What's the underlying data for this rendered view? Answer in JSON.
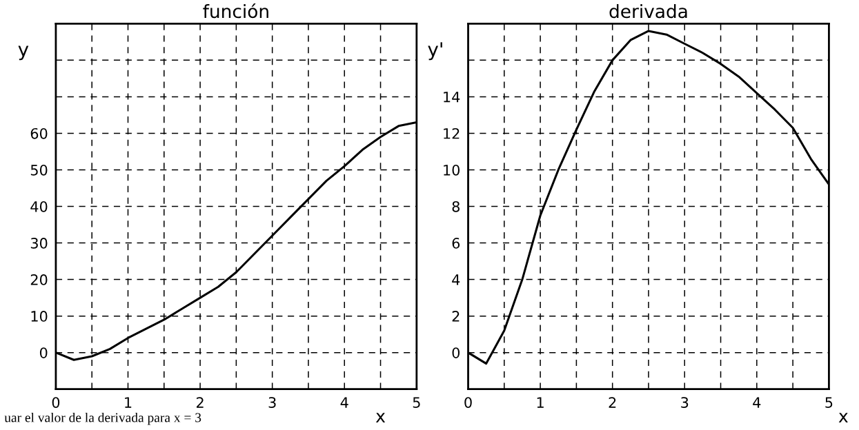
{
  "chart_data": [
    {
      "type": "line",
      "title": "función",
      "xlabel": "x",
      "ylabel": "y",
      "x": [
        0,
        0.25,
        0.5,
        0.75,
        1,
        1.25,
        1.5,
        1.75,
        2,
        2.25,
        2.5,
        2.75,
        3,
        3.25,
        3.5,
        3.75,
        4,
        4.25,
        4.5,
        4.75,
        5
      ],
      "series": [
        {
          "color": "#000000",
          "values": [
            0,
            -2,
            -1,
            1,
            4,
            6.5,
            9,
            12,
            15,
            18,
            22,
            27,
            32,
            37,
            42,
            47,
            51,
            55.5,
            59,
            62,
            63
          ]
        }
      ],
      "xlim": [
        0,
        5
      ],
      "xticks": [
        0,
        {
          "value": 0.5,
          "label": null
        },
        1,
        {
          "value": 1.5,
          "label": null
        },
        2,
        {
          "value": 2.5,
          "label": null
        },
        3,
        {
          "value": 3.5,
          "label": null
        },
        4,
        {
          "value": 4.5,
          "label": null
        },
        5
      ],
      "ylim": [
        -10,
        90
      ],
      "yticks": [
        0,
        10,
        20,
        30,
        40,
        50,
        60,
        {
          "value": 70,
          "label": null
        },
        {
          "value": 80,
          "label": null
        }
      ],
      "grid": true,
      "marker": "none",
      "line_style": "solid",
      "legend": false,
      "annotations": [
        "uar el valor de la derivada para x = 3"
      ]
    },
    {
      "type": "line",
      "title": "derivada",
      "xlabel": "x",
      "ylabel": "y'",
      "x": [
        0,
        0.25,
        0.5,
        0.75,
        1,
        1.25,
        1.5,
        1.75,
        2,
        2.25,
        2.5,
        2.75,
        3,
        3.25,
        3.5,
        3.75,
        4,
        4.25,
        4.5,
        4.75,
        5
      ],
      "series": [
        {
          "color": "#000000",
          "values": [
            0,
            -0.6,
            1.2,
            4,
            7.5,
            10,
            12.2,
            14.3,
            16,
            17.1,
            17.6,
            17.4,
            16.9,
            16.4,
            15.8,
            15.1,
            14.2,
            13.3,
            12.3,
            10.6,
            9.2
          ]
        }
      ],
      "xlim": [
        0,
        5
      ],
      "xticks": [
        0,
        {
          "value": 0.5,
          "label": null
        },
        1,
        {
          "value": 1.5,
          "label": null
        },
        2,
        {
          "value": 2.5,
          "label": null
        },
        3,
        {
          "value": 3.5,
          "label": null
        },
        4,
        {
          "value": 4.5,
          "label": null
        },
        5
      ],
      "ylim": [
        -2,
        18
      ],
      "yticks": [
        0,
        2,
        4,
        6,
        8,
        10,
        12,
        14,
        {
          "value": 16,
          "label": null
        }
      ],
      "grid": true,
      "marker": "none",
      "line_style": "solid",
      "legend": false
    }
  ]
}
